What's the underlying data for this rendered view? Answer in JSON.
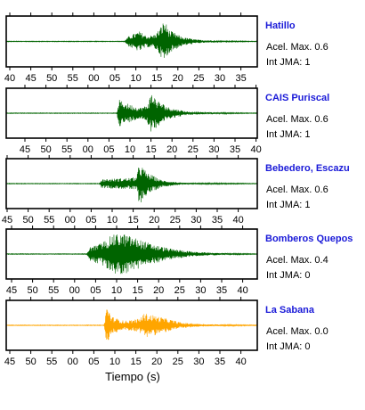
{
  "chart_data": {
    "type": "line",
    "xlabel": "Tiempo (s)",
    "acel_label": "Acel. Max.",
    "int_label": "Int JMA:",
    "series": [
      {
        "name": "Hatillo",
        "acel_max": "0.6",
        "int_jma": "1",
        "color": "#006400",
        "tick_labels": [
          "40",
          "45",
          "50",
          "55",
          "00",
          "05",
          "10",
          "15",
          "20",
          "25",
          "30",
          "35"
        ],
        "envelope": [
          [
            0.0,
            0.015
          ],
          [
            0.47,
            0.015
          ],
          [
            0.49,
            0.25
          ],
          [
            0.53,
            0.45
          ],
          [
            0.56,
            0.25
          ],
          [
            0.59,
            0.3
          ],
          [
            0.61,
            0.55
          ],
          [
            0.63,
            0.95
          ],
          [
            0.65,
            0.5
          ],
          [
            0.7,
            0.2
          ],
          [
            0.76,
            0.08
          ],
          [
            0.85,
            0.03
          ],
          [
            1.0,
            0.015
          ]
        ]
      },
      {
        "name": "CAIS Puriscal",
        "acel_max": "0.6",
        "int_jma": "1",
        "color": "#006400",
        "tick_labels": [
          "45",
          "50",
          "55",
          "00",
          "05",
          "10",
          "15",
          "20",
          "25",
          "30",
          "35",
          "40"
        ],
        "envelope": [
          [
            0.0,
            0.015
          ],
          [
            0.44,
            0.015
          ],
          [
            0.45,
            0.6
          ],
          [
            0.48,
            0.45
          ],
          [
            0.53,
            0.25
          ],
          [
            0.56,
            0.35
          ],
          [
            0.58,
            0.95
          ],
          [
            0.6,
            0.6
          ],
          [
            0.65,
            0.25
          ],
          [
            0.72,
            0.08
          ],
          [
            0.85,
            0.03
          ],
          [
            1.0,
            0.015
          ]
        ]
      },
      {
        "name": "Bebedero, Escazu",
        "acel_max": "0.6",
        "int_jma": "1",
        "color": "#006400",
        "tick_labels": [
          "45",
          "50",
          "55",
          "00",
          "05",
          "10",
          "15",
          "20",
          "25",
          "30",
          "35",
          "40"
        ],
        "envelope": [
          [
            0.0,
            0.015
          ],
          [
            0.37,
            0.015
          ],
          [
            0.38,
            0.2
          ],
          [
            0.48,
            0.25
          ],
          [
            0.52,
            0.3
          ],
          [
            0.53,
            0.95
          ],
          [
            0.56,
            0.5
          ],
          [
            0.62,
            0.15
          ],
          [
            0.7,
            0.04
          ],
          [
            1.0,
            0.015
          ]
        ]
      },
      {
        "name": "Bomberos Quepos",
        "acel_max": "0.4",
        "int_jma": "0",
        "color": "#006400",
        "tick_labels": [
          "45",
          "50",
          "55",
          "00",
          "05",
          "10",
          "15",
          "20",
          "25",
          "30",
          "35",
          "40"
        ],
        "envelope": [
          [
            0.0,
            0.015
          ],
          [
            0.32,
            0.015
          ],
          [
            0.33,
            0.3
          ],
          [
            0.38,
            0.5
          ],
          [
            0.42,
            0.85
          ],
          [
            0.46,
            0.95
          ],
          [
            0.52,
            0.7
          ],
          [
            0.58,
            0.45
          ],
          [
            0.65,
            0.25
          ],
          [
            0.75,
            0.1
          ],
          [
            0.86,
            0.04
          ],
          [
            1.0,
            0.015
          ]
        ]
      },
      {
        "name": "La Sabana",
        "acel_max": "0.0",
        "int_jma": "0",
        "color": "#ffa500",
        "tick_labels": [
          "45",
          "50",
          "55",
          "00",
          "05",
          "10",
          "15",
          "20",
          "25",
          "30",
          "35",
          "40"
        ],
        "envelope": [
          [
            0.0,
            0.015
          ],
          [
            0.39,
            0.015
          ],
          [
            0.4,
            0.95
          ],
          [
            0.42,
            0.4
          ],
          [
            0.47,
            0.2
          ],
          [
            0.53,
            0.3
          ],
          [
            0.55,
            0.55
          ],
          [
            0.59,
            0.45
          ],
          [
            0.64,
            0.3
          ],
          [
            0.7,
            0.12
          ],
          [
            0.8,
            0.05
          ],
          [
            1.0,
            0.015
          ]
        ]
      }
    ]
  }
}
